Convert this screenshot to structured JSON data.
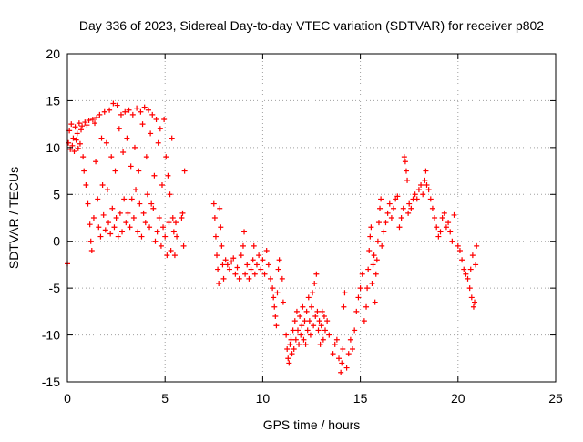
{
  "chart_data": {
    "type": "scatter",
    "title": "Day 336 of 2023, Sidereal Day-to-day VTEC variation (SDTVAR) for receiver p802",
    "xlabel": "GPS time / hours",
    "ylabel": "SDTVAR / TECUs",
    "xlim": [
      0,
      25
    ],
    "ylim": [
      -15,
      20
    ],
    "xticks": [
      0,
      5,
      10,
      15,
      20,
      25
    ],
    "yticks": [
      -15,
      -10,
      -5,
      0,
      5,
      10,
      15,
      20
    ],
    "xtick_labels": [
      "0",
      "5",
      "10",
      "15",
      "20",
      "25"
    ],
    "ytick_labels": [
      "-15",
      "-10",
      "-5",
      "0",
      "5",
      "10",
      "15",
      "20"
    ],
    "grid": true,
    "marker": "+",
    "series": [
      {
        "name": "SDTVAR",
        "color": "#ff0000",
        "points": [
          [
            0.0,
            -2.4
          ],
          [
            0.05,
            10.5
          ],
          [
            0.1,
            11.8
          ],
          [
            0.15,
            9.8
          ],
          [
            0.2,
            12.5
          ],
          [
            0.25,
            10.2
          ],
          [
            0.3,
            11.0
          ],
          [
            0.35,
            9.6
          ],
          [
            0.4,
            12.2
          ],
          [
            0.45,
            10.8
          ],
          [
            0.5,
            11.5
          ],
          [
            0.55,
            9.9
          ],
          [
            0.6,
            12.6
          ],
          [
            0.65,
            10.4
          ],
          [
            0.7,
            11.9
          ],
          [
            0.75,
            12.3
          ],
          [
            0.8,
            9.0
          ],
          [
            0.85,
            7.5
          ],
          [
            0.9,
            12.7
          ],
          [
            0.95,
            6.0
          ],
          [
            1.0,
            12.4
          ],
          [
            1.05,
            4.0
          ],
          [
            1.1,
            12.9
          ],
          [
            1.15,
            1.8
          ],
          [
            1.2,
            0.0
          ],
          [
            1.25,
            -1.0
          ],
          [
            1.3,
            13.0
          ],
          [
            1.35,
            2.5
          ],
          [
            1.4,
            12.6
          ],
          [
            1.45,
            8.5
          ],
          [
            1.5,
            13.2
          ],
          [
            1.55,
            4.5
          ],
          [
            1.6,
            1.5
          ],
          [
            1.65,
            13.5
          ],
          [
            1.7,
            0.5
          ],
          [
            1.75,
            11.0
          ],
          [
            1.8,
            6.0
          ],
          [
            1.85,
            2.8
          ],
          [
            1.9,
            13.8
          ],
          [
            1.95,
            1.2
          ],
          [
            2.0,
            10.5
          ],
          [
            2.05,
            5.5
          ],
          [
            2.1,
            2.0
          ],
          [
            2.15,
            14.0
          ],
          [
            2.2,
            0.8
          ],
          [
            2.25,
            9.0
          ],
          [
            2.3,
            3.5
          ],
          [
            2.35,
            14.7
          ],
          [
            2.4,
            1.5
          ],
          [
            2.45,
            7.5
          ],
          [
            2.5,
            2.5
          ],
          [
            2.55,
            14.5
          ],
          [
            2.6,
            0.5
          ],
          [
            2.65,
            12.0
          ],
          [
            2.7,
            3.0
          ],
          [
            2.75,
            13.5
          ],
          [
            2.8,
            1.0
          ],
          [
            2.85,
            9.5
          ],
          [
            2.9,
            4.5
          ],
          [
            2.95,
            13.8
          ],
          [
            3.0,
            2.0
          ],
          [
            3.05,
            11.0
          ],
          [
            3.1,
            3.0
          ],
          [
            3.15,
            14.0
          ],
          [
            3.2,
            1.5
          ],
          [
            3.25,
            8.0
          ],
          [
            3.3,
            4.5
          ],
          [
            3.35,
            13.5
          ],
          [
            3.4,
            2.5
          ],
          [
            3.45,
            10.0
          ],
          [
            3.5,
            5.5
          ],
          [
            3.55,
            14.2
          ],
          [
            3.6,
            1.0
          ],
          [
            3.65,
            7.5
          ],
          [
            3.7,
            4.0
          ],
          [
            3.75,
            13.8
          ],
          [
            3.8,
            0.5
          ],
          [
            3.85,
            12.5
          ],
          [
            3.9,
            3.0
          ],
          [
            3.95,
            14.3
          ],
          [
            4.0,
            2.0
          ],
          [
            4.05,
            9.0
          ],
          [
            4.1,
            5.0
          ],
          [
            4.15,
            14.0
          ],
          [
            4.2,
            1.5
          ],
          [
            4.25,
            11.5
          ],
          [
            4.3,
            4.0
          ],
          [
            4.35,
            13.5
          ],
          [
            4.4,
            3.5
          ],
          [
            4.45,
            7.0
          ],
          [
            4.5,
            0.0
          ],
          [
            4.55,
            13.0
          ],
          [
            4.6,
            1.0
          ],
          [
            4.65,
            10.5
          ],
          [
            4.7,
            2.5
          ],
          [
            4.75,
            12.0
          ],
          [
            4.8,
            -0.5
          ],
          [
            4.85,
            6.0
          ],
          [
            4.9,
            1.5
          ],
          [
            4.95,
            13.0
          ],
          [
            5.0,
            0.5
          ],
          [
            5.05,
            9.0
          ],
          [
            5.1,
            -1.5
          ],
          [
            5.15,
            7.0
          ],
          [
            5.2,
            2.0
          ],
          [
            5.25,
            5.0
          ],
          [
            5.3,
            -1.0
          ],
          [
            5.35,
            11.0
          ],
          [
            5.4,
            2.5
          ],
          [
            5.45,
            1.0
          ],
          [
            5.5,
            -1.5
          ],
          [
            5.55,
            2.0
          ],
          [
            5.6,
            0.5
          ],
          [
            5.85,
            2.5
          ],
          [
            5.9,
            3.0
          ],
          [
            5.95,
            -0.5
          ],
          [
            6.0,
            7.5
          ],
          [
            7.5,
            4.0
          ],
          [
            7.55,
            2.5
          ],
          [
            7.6,
            0.5
          ],
          [
            7.65,
            -1.5
          ],
          [
            7.7,
            -3.0
          ],
          [
            7.75,
            -4.5
          ],
          [
            7.8,
            3.5
          ],
          [
            7.85,
            1.5
          ],
          [
            7.9,
            -0.5
          ],
          [
            7.95,
            -2.5
          ],
          [
            8.0,
            -4.0
          ],
          [
            8.1,
            -2.0
          ],
          [
            8.2,
            -2.5
          ],
          [
            8.3,
            -3.0
          ],
          [
            8.4,
            -2.2
          ],
          [
            8.5,
            -1.8
          ],
          [
            8.6,
            -3.5
          ],
          [
            8.7,
            -2.8
          ],
          [
            8.8,
            -4.0
          ],
          [
            8.9,
            -1.5
          ],
          [
            9.0,
            -0.5
          ],
          [
            9.05,
            1.0
          ],
          [
            9.1,
            -3.5
          ],
          [
            9.2,
            -2.5
          ],
          [
            9.3,
            -4.0
          ],
          [
            9.4,
            -3.0
          ],
          [
            9.5,
            -2.0
          ],
          [
            9.55,
            -0.5
          ],
          [
            9.6,
            -3.5
          ],
          [
            9.7,
            -2.5
          ],
          [
            9.8,
            -1.5
          ],
          [
            9.9,
            -3.0
          ],
          [
            10.0,
            -2.0
          ],
          [
            10.1,
            -3.5
          ],
          [
            10.2,
            -1.0
          ],
          [
            10.3,
            -2.5
          ],
          [
            10.4,
            -4.0
          ],
          [
            10.5,
            -5.0
          ],
          [
            10.55,
            -6.0
          ],
          [
            10.6,
            -7.0
          ],
          [
            10.65,
            -8.0
          ],
          [
            10.7,
            -9.0
          ],
          [
            10.75,
            -5.5
          ],
          [
            10.8,
            -3.0
          ],
          [
            10.85,
            -2.0
          ],
          [
            11.0,
            -4.0
          ],
          [
            11.05,
            -6.5
          ],
          [
            11.2,
            -10.0
          ],
          [
            11.25,
            -11.5
          ],
          [
            11.3,
            -12.5
          ],
          [
            11.35,
            -13.0
          ],
          [
            11.4,
            -11.0
          ],
          [
            11.45,
            -10.5
          ],
          [
            11.5,
            -12.0
          ],
          [
            11.55,
            -9.5
          ],
          [
            11.6,
            -11.5
          ],
          [
            11.65,
            -8.5
          ],
          [
            11.7,
            -10.5
          ],
          [
            11.75,
            -7.5
          ],
          [
            11.8,
            -9.5
          ],
          [
            11.85,
            -11.0
          ],
          [
            11.9,
            -8.0
          ],
          [
            11.95,
            -10.0
          ],
          [
            12.0,
            -9.0
          ],
          [
            12.05,
            -7.0
          ],
          [
            12.1,
            -10.5
          ],
          [
            12.15,
            -8.5
          ],
          [
            12.2,
            -11.0
          ],
          [
            12.25,
            -7.5
          ],
          [
            12.3,
            -9.5
          ],
          [
            12.35,
            -6.0
          ],
          [
            12.4,
            -8.5
          ],
          [
            12.45,
            -10.0
          ],
          [
            12.5,
            -7.0
          ],
          [
            12.55,
            -5.5
          ],
          [
            12.6,
            -9.0
          ],
          [
            12.65,
            -4.5
          ],
          [
            12.7,
            -8.0
          ],
          [
            12.75,
            -3.5
          ],
          [
            12.8,
            -7.5
          ],
          [
            12.85,
            -9.5
          ],
          [
            12.9,
            -8.5
          ],
          [
            12.95,
            -11.0
          ],
          [
            13.0,
            -9.0
          ],
          [
            13.05,
            -7.5
          ],
          [
            13.1,
            -10.5
          ],
          [
            13.15,
            -8.0
          ],
          [
            13.2,
            -9.5
          ],
          [
            13.3,
            -8.5
          ],
          [
            13.4,
            -10.0
          ],
          [
            13.6,
            -12.0
          ],
          [
            13.7,
            -11.0
          ],
          [
            13.8,
            -10.5
          ],
          [
            13.9,
            -12.5
          ],
          [
            14.0,
            -14.0
          ],
          [
            14.05,
            -13.0
          ],
          [
            14.1,
            -11.5
          ],
          [
            14.15,
            -7.0
          ],
          [
            14.2,
            -5.5
          ],
          [
            14.3,
            -13.5
          ],
          [
            14.4,
            -12.0
          ],
          [
            14.5,
            -10.5
          ],
          [
            14.6,
            -11.5
          ],
          [
            14.7,
            -9.5
          ],
          [
            14.8,
            -7.5
          ],
          [
            14.9,
            -6.0
          ],
          [
            15.0,
            -5.0
          ],
          [
            15.1,
            -3.5
          ],
          [
            15.2,
            -8.5
          ],
          [
            15.3,
            -7.0
          ],
          [
            15.35,
            -5.0
          ],
          [
            15.4,
            -3.0
          ],
          [
            15.45,
            -1.0
          ],
          [
            15.5,
            0.5
          ],
          [
            15.55,
            1.5
          ],
          [
            15.6,
            -4.5
          ],
          [
            15.65,
            -2.5
          ],
          [
            15.7,
            -1.5
          ],
          [
            15.75,
            -6.5
          ],
          [
            15.8,
            -3.5
          ],
          [
            15.85,
            -2.0
          ],
          [
            15.9,
            0.0
          ],
          [
            15.95,
            2.0
          ],
          [
            16.0,
            3.5
          ],
          [
            16.05,
            4.5
          ],
          [
            16.1,
            -0.5
          ],
          [
            16.2,
            1.0
          ],
          [
            16.3,
            2.0
          ],
          [
            16.4,
            3.0
          ],
          [
            16.5,
            4.0
          ],
          [
            16.6,
            2.5
          ],
          [
            16.7,
            3.5
          ],
          [
            16.8,
            4.5
          ],
          [
            16.9,
            4.8
          ],
          [
            17.0,
            1.5
          ],
          [
            17.1,
            2.5
          ],
          [
            17.2,
            3.5
          ],
          [
            17.25,
            9.0
          ],
          [
            17.3,
            8.5
          ],
          [
            17.35,
            7.5
          ],
          [
            17.4,
            6.5
          ],
          [
            17.45,
            3.0
          ],
          [
            17.5,
            4.0
          ],
          [
            17.6,
            3.5
          ],
          [
            17.7,
            4.5
          ],
          [
            17.8,
            5.0
          ],
          [
            17.9,
            4.5
          ],
          [
            18.0,
            5.5
          ],
          [
            18.1,
            6.0
          ],
          [
            18.2,
            5.0
          ],
          [
            18.3,
            6.5
          ],
          [
            18.35,
            7.5
          ],
          [
            18.4,
            6.0
          ],
          [
            18.5,
            5.5
          ],
          [
            18.6,
            4.5
          ],
          [
            18.7,
            3.5
          ],
          [
            18.8,
            2.5
          ],
          [
            18.9,
            1.5
          ],
          [
            19.0,
            0.5
          ],
          [
            19.1,
            1.0
          ],
          [
            19.2,
            2.5
          ],
          [
            19.3,
            3.0
          ],
          [
            19.4,
            1.5
          ],
          [
            19.5,
            2.0
          ],
          [
            19.6,
            1.0
          ],
          [
            19.7,
            0.0
          ],
          [
            19.8,
            2.8
          ],
          [
            20.0,
            -0.5
          ],
          [
            20.1,
            -1.0
          ],
          [
            20.2,
            -2.0
          ],
          [
            20.3,
            -3.0
          ],
          [
            20.4,
            -3.5
          ],
          [
            20.5,
            -4.0
          ],
          [
            20.6,
            -5.0
          ],
          [
            20.65,
            -3.0
          ],
          [
            20.7,
            -6.0
          ],
          [
            20.75,
            -1.5
          ],
          [
            20.8,
            -7.0
          ],
          [
            20.85,
            -6.5
          ],
          [
            20.9,
            -2.5
          ],
          [
            20.95,
            -0.5
          ]
        ]
      }
    ]
  }
}
